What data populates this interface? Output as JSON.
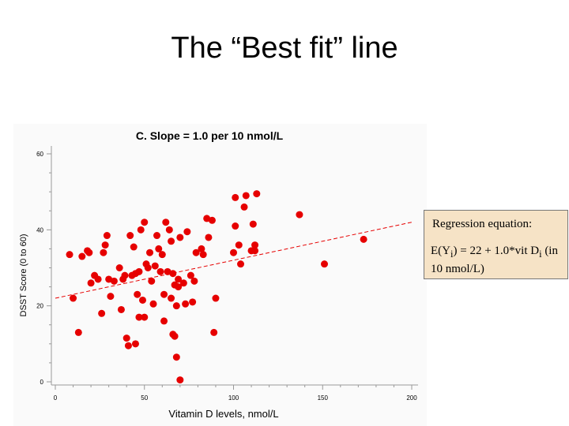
{
  "slide": {
    "title": "The “Best fit” line"
  },
  "callout": {
    "heading": "Regression equation:",
    "equation": "E(Y<sub>i</sub>) = 22 + 1.0*vit D<sub>i</sub> (in 10 nmol/L)"
  },
  "chart_data": {
    "type": "scatter",
    "title": "C. Slope = 1.0 per 10 nmol/L",
    "xlabel": "Vitamin D levels, nmol/L",
    "ylabel": "DSST Score (0 to 60)",
    "xlim": [
      0,
      200
    ],
    "ylim": [
      0,
      60
    ],
    "xticks": [
      0,
      50,
      100,
      150,
      200
    ],
    "yticks": [
      0,
      20,
      40,
      60
    ],
    "grid": false,
    "point_color": "#e60000",
    "line_color": "#e60000",
    "regression_line": {
      "intercept": 22,
      "slope_per_nmol": 0.1,
      "x_range": [
        0,
        200
      ],
      "style": "dashed"
    },
    "points": [
      [
        8,
        33.5
      ],
      [
        10,
        22
      ],
      [
        13,
        13
      ],
      [
        15,
        33
      ],
      [
        18,
        34.5
      ],
      [
        19,
        34
      ],
      [
        20,
        26
      ],
      [
        22,
        28
      ],
      [
        24,
        27
      ],
      [
        26,
        18
      ],
      [
        27,
        34
      ],
      [
        28,
        36
      ],
      [
        29,
        38.5
      ],
      [
        30,
        27
      ],
      [
        31,
        22.5
      ],
      [
        33,
        26.5
      ],
      [
        36,
        30
      ],
      [
        37,
        19
      ],
      [
        38,
        27
      ],
      [
        39,
        28
      ],
      [
        40,
        11.5
      ],
      [
        41,
        9.5
      ],
      [
        42,
        38.5
      ],
      [
        43,
        28
      ],
      [
        44,
        35.5
      ],
      [
        45,
        10
      ],
      [
        45,
        28.5
      ],
      [
        46,
        23
      ],
      [
        47,
        17
      ],
      [
        47,
        29
      ],
      [
        48,
        40
      ],
      [
        49,
        21.5
      ],
      [
        50,
        42
      ],
      [
        50,
        17
      ],
      [
        51,
        31
      ],
      [
        52,
        30
      ],
      [
        53,
        34
      ],
      [
        54,
        26.5
      ],
      [
        55,
        20.5
      ],
      [
        56,
        30.5
      ],
      [
        57,
        38.5
      ],
      [
        58,
        35
      ],
      [
        59,
        29
      ],
      [
        60,
        33.5
      ],
      [
        61,
        23
      ],
      [
        61,
        16
      ],
      [
        62,
        42
      ],
      [
        63,
        29
      ],
      [
        64,
        40
      ],
      [
        65,
        37
      ],
      [
        65,
        22
      ],
      [
        66,
        28.5
      ],
      [
        66,
        12.5
      ],
      [
        67,
        25.5
      ],
      [
        67,
        12
      ],
      [
        68,
        6.5
      ],
      [
        68,
        20
      ],
      [
        69,
        27
      ],
      [
        69,
        25
      ],
      [
        70,
        38
      ],
      [
        70,
        0.5
      ],
      [
        72,
        26
      ],
      [
        73,
        20.5
      ],
      [
        74,
        39.5
      ],
      [
        76,
        28
      ],
      [
        77,
        21
      ],
      [
        78,
        26.5
      ],
      [
        79,
        34
      ],
      [
        82,
        35
      ],
      [
        83,
        33.5
      ],
      [
        85,
        43
      ],
      [
        86,
        38
      ],
      [
        88,
        42.5
      ],
      [
        89,
        13
      ],
      [
        90,
        22
      ],
      [
        100,
        34
      ],
      [
        101,
        48.5
      ],
      [
        101,
        41
      ],
      [
        103,
        36
      ],
      [
        104,
        31
      ],
      [
        106,
        46
      ],
      [
        107,
        49
      ],
      [
        110,
        34.5
      ],
      [
        111,
        41.5
      ],
      [
        112,
        34.5
      ],
      [
        112,
        36
      ],
      [
        113,
        49.5
      ],
      [
        137,
        44
      ],
      [
        151,
        31
      ],
      [
        173,
        37.5
      ]
    ]
  }
}
